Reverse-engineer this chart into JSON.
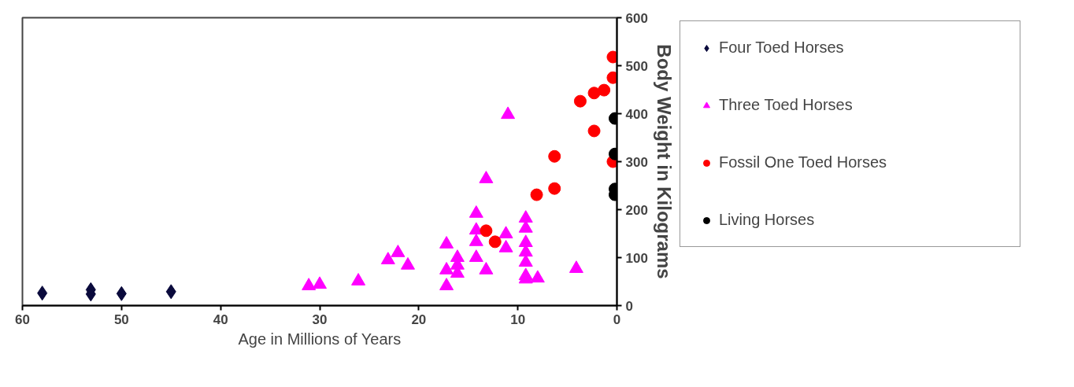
{
  "chart_data": {
    "type": "scatter",
    "xlabel": "Age in Millions of Years",
    "ylabel": "Body Weight in Kilograms",
    "xlim": [
      60,
      0
    ],
    "xticks": [
      60,
      50,
      40,
      30,
      20,
      10,
      0
    ],
    "ylim": [
      0,
      600
    ],
    "yticks": [
      0,
      100,
      200,
      300,
      400,
      500,
      600
    ],
    "legend": "right",
    "series": [
      {
        "name": "Four Toed Horses",
        "color": "#0a0a3c",
        "marker": "diamond",
        "x": [
          58,
          53.1,
          53.1,
          50,
          45
        ],
        "values": [
          26,
          33,
          24,
          25,
          29
        ]
      },
      {
        "name": "Three Toed Horses",
        "color": "#ff00ff",
        "marker": "triangle",
        "x": [
          31.1,
          30,
          26.1,
          23.1,
          22.1,
          21.1,
          17.2,
          17.2,
          17.2,
          16.1,
          16.1,
          16.1,
          14.2,
          14.2,
          14.2,
          14.2,
          13.2,
          11.2,
          11.2,
          9.2,
          9.2,
          9.2,
          9.2,
          9.2,
          9.2,
          9.2,
          8,
          4.1,
          11,
          13.2
        ],
        "values": [
          41,
          44,
          51,
          95,
          110,
          84,
          128,
          74,
          41,
          100,
          84,
          67,
          192,
          157,
          133,
          100,
          74,
          149,
          120,
          182,
          161,
          131,
          111,
          90,
          62,
          55,
          57,
          77,
          398,
          264
        ]
      },
      {
        "name": "Fossil One Toed Horses",
        "color": "#ff0000",
        "marker": "circle",
        "x": [
          0.4,
          0.4,
          1.3,
          2.3,
          3.7,
          2.3,
          6.3,
          6.3,
          8.1,
          0.4,
          13.2,
          12.3
        ],
        "values": [
          518,
          475,
          449,
          443,
          426,
          364,
          311,
          244,
          231,
          300,
          156,
          133
        ]
      },
      {
        "name": "Living Horses",
        "color": "#000000",
        "marker": "circle",
        "x": [
          0.2,
          0.2,
          0.2,
          0.2
        ],
        "values": [
          390,
          316,
          243,
          231
        ]
      }
    ]
  }
}
